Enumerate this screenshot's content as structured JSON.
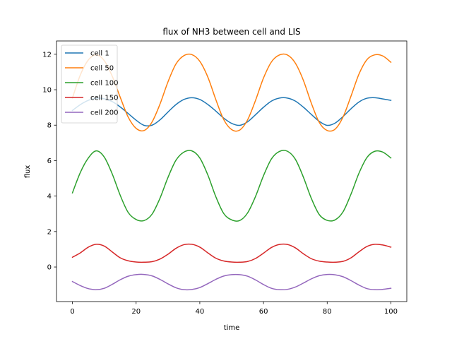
{
  "chart_data": {
    "type": "line",
    "title": "flux of NH3 between cell and LIS",
    "xlabel": "time",
    "ylabel": "flux",
    "xlim": [
      -5,
      105
    ],
    "ylim": [
      -1.95,
      12.75
    ],
    "xticks": [
      0,
      20,
      40,
      60,
      80,
      100
    ],
    "yticks": [
      0,
      2,
      4,
      6,
      8,
      10,
      12
    ],
    "grid": false,
    "legend_position": "top-left",
    "series": [
      {
        "name": "cell 1",
        "color": "#1f77b4",
        "x": [
          0,
          2.5,
          5,
          7.5,
          10,
          12.5,
          15,
          17.5,
          20,
          22.5,
          25,
          27.5,
          30,
          32.5,
          35,
          37.5,
          40,
          42.5,
          45,
          47.5,
          50,
          52.5,
          55,
          57.5,
          60,
          62.5,
          65,
          67.5,
          70,
          72.5,
          75,
          77.5,
          80,
          82.5,
          85,
          87.5,
          90,
          92.5,
          95,
          97.5,
          100
        ],
        "values": [
          8.83,
          9.16,
          9.4,
          9.52,
          9.49,
          9.33,
          9.03,
          8.66,
          8.28,
          7.99,
          8.0,
          8.3,
          8.74,
          9.16,
          9.45,
          9.55,
          9.45,
          9.17,
          8.8,
          8.4,
          8.1,
          7.99,
          8.19,
          8.59,
          9.01,
          9.36,
          9.53,
          9.53,
          9.36,
          9.02,
          8.61,
          8.22,
          7.99,
          8.12,
          8.49,
          8.93,
          9.31,
          9.52,
          9.55,
          9.48,
          9.4
        ]
      },
      {
        "name": "cell 50",
        "color": "#ff7f0e",
        "x": [
          0,
          2.5,
          5,
          7.5,
          10,
          12.5,
          15,
          17.5,
          20,
          22.5,
          25,
          27.5,
          30,
          32.5,
          35,
          37.5,
          40,
          42.5,
          45,
          47.5,
          50,
          52.5,
          55,
          57.5,
          60,
          62.5,
          65,
          67.5,
          70,
          72.5,
          75,
          77.5,
          80,
          82.5,
          85,
          87.5,
          90,
          92.5,
          95,
          97.5,
          100
        ],
        "values": [
          9.53,
          10.84,
          11.68,
          11.97,
          11.64,
          10.76,
          9.58,
          8.46,
          7.82,
          7.7,
          8.18,
          9.19,
          10.44,
          11.45,
          11.92,
          11.98,
          11.6,
          10.72,
          9.46,
          8.32,
          7.75,
          7.72,
          8.3,
          9.4,
          10.66,
          11.57,
          11.96,
          11.96,
          11.5,
          10.54,
          9.25,
          8.16,
          7.7,
          7.78,
          8.47,
          9.65,
          10.89,
          11.7,
          11.97,
          11.9,
          11.55
        ]
      },
      {
        "name": "cell 100",
        "color": "#2ca02c",
        "x": [
          0,
          2.5,
          5,
          7.5,
          10,
          12.5,
          15,
          17.5,
          20,
          22.5,
          25,
          27.5,
          30,
          32.5,
          35,
          37.5,
          40,
          42.5,
          45,
          47.5,
          50,
          52.5,
          55,
          57.5,
          60,
          62.5,
          65,
          67.5,
          70,
          72.5,
          75,
          77.5,
          80,
          82.5,
          85,
          87.5,
          90,
          92.5,
          95,
          97.5,
          100
        ],
        "values": [
          4.18,
          5.34,
          6.15,
          6.55,
          6.2,
          5.25,
          4.05,
          3.08,
          2.68,
          2.62,
          2.98,
          3.88,
          5.05,
          6.02,
          6.48,
          6.55,
          6.15,
          5.2,
          3.98,
          3.02,
          2.66,
          2.62,
          3.05,
          3.98,
          5.15,
          6.1,
          6.52,
          6.53,
          6.08,
          5.08,
          3.88,
          2.96,
          2.63,
          2.66,
          3.12,
          4.12,
          5.3,
          6.18,
          6.53,
          6.48,
          6.15
        ]
      },
      {
        "name": "cell 150",
        "color": "#d62728",
        "x": [
          0,
          2.5,
          5,
          7.5,
          10,
          12.5,
          15,
          17.5,
          20,
          22.5,
          25,
          27.5,
          30,
          32.5,
          35,
          37.5,
          40,
          42.5,
          45,
          47.5,
          50,
          52.5,
          55,
          57.5,
          60,
          62.5,
          65,
          67.5,
          70,
          72.5,
          75,
          77.5,
          80,
          82.5,
          85,
          87.5,
          90,
          92.5,
          95,
          97.5,
          100
        ],
        "values": [
          0.55,
          0.8,
          1.12,
          1.28,
          1.18,
          0.85,
          0.52,
          0.35,
          0.28,
          0.27,
          0.3,
          0.45,
          0.72,
          1.05,
          1.26,
          1.28,
          1.12,
          0.8,
          0.5,
          0.34,
          0.28,
          0.27,
          0.31,
          0.48,
          0.78,
          1.1,
          1.27,
          1.27,
          1.08,
          0.75,
          0.47,
          0.33,
          0.28,
          0.27,
          0.32,
          0.52,
          0.86,
          1.16,
          1.28,
          1.24,
          1.12
        ]
      },
      {
        "name": "cell 200",
        "color": "#9467bd",
        "x": [
          0,
          2.5,
          5,
          7.5,
          10,
          12.5,
          15,
          17.5,
          20,
          22.5,
          25,
          27.5,
          30,
          32.5,
          35,
          37.5,
          40,
          42.5,
          45,
          47.5,
          50,
          52.5,
          55,
          57.5,
          60,
          62.5,
          65,
          67.5,
          70,
          72.5,
          75,
          77.5,
          80,
          82.5,
          85,
          87.5,
          90,
          92.5,
          95,
          97.5,
          100
        ],
        "values": [
          -0.82,
          -1.05,
          -1.22,
          -1.28,
          -1.2,
          -0.98,
          -0.72,
          -0.52,
          -0.43,
          -0.42,
          -0.5,
          -0.7,
          -0.95,
          -1.17,
          -1.28,
          -1.27,
          -1.16,
          -0.94,
          -0.7,
          -0.51,
          -0.43,
          -0.43,
          -0.52,
          -0.73,
          -0.99,
          -1.2,
          -1.28,
          -1.26,
          -1.13,
          -0.91,
          -0.67,
          -0.49,
          -0.42,
          -0.44,
          -0.55,
          -0.77,
          -1.02,
          -1.22,
          -1.28,
          -1.26,
          -1.2
        ]
      }
    ]
  }
}
